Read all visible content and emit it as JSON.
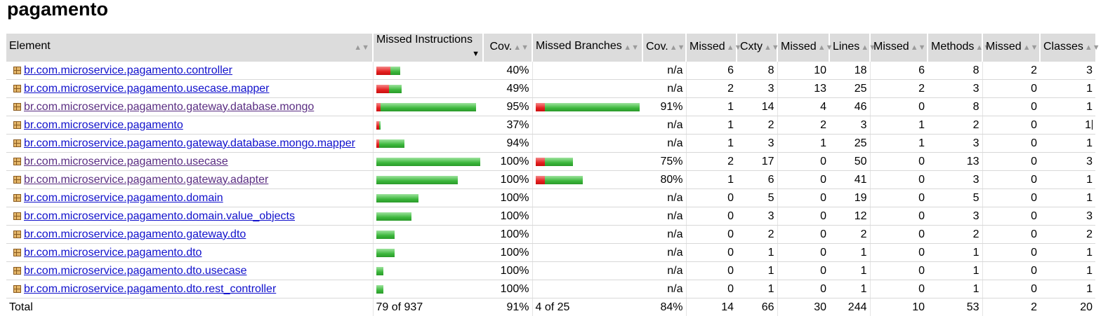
{
  "page_title": "pagamento",
  "headers": {
    "element": "Element",
    "missed_instructions": "Missed Instructions",
    "cov1": "Cov.",
    "missed_branches": "Missed Branches",
    "cov2": "Cov.",
    "missed_cxty": "Missed",
    "cxty": "Cxty",
    "missed_lines": "Missed",
    "lines": "Lines",
    "missed_methods": "Missed",
    "methods": "Methods",
    "missed_classes": "Missed",
    "classes": "Classes"
  },
  "icons": {
    "package": "package-icon",
    "sort": "sort-arrows-icon",
    "sort_desc": "sort-descending-icon"
  },
  "colors": {
    "link": "#1111cc",
    "visited_link": "#5a2d82",
    "bar_red": "#e52020",
    "bar_green": "#3cb73c",
    "header_bg": "#dcdcdc"
  },
  "rows": [
    {
      "name": "br.com.microservice.pagamento.controller",
      "visited": false,
      "instr": {
        "missed": 10,
        "covered": 7
      },
      "cov1": "40%",
      "branch": null,
      "cov2": "n/a",
      "m_cxty": "6",
      "cxty": "8",
      "m_lines": "10",
      "lines": "18",
      "m_methods": "6",
      "methods": "8",
      "m_classes": "2",
      "classes": "3"
    },
    {
      "name": "br.com.microservice.pagamento.usecase.mapper",
      "visited": false,
      "instr": {
        "missed": 9,
        "covered": 9
      },
      "cov1": "49%",
      "branch": null,
      "cov2": "n/a",
      "m_cxty": "2",
      "cxty": "3",
      "m_lines": "13",
      "lines": "25",
      "m_methods": "2",
      "methods": "3",
      "m_classes": "0",
      "classes": "1"
    },
    {
      "name": "br.com.microservice.pagamento.gateway.database.mongo",
      "visited": true,
      "instr": {
        "missed": 3,
        "covered": 68
      },
      "cov1": "95%",
      "branch": {
        "missed": 1,
        "covered": 10
      },
      "cov2": "91%",
      "m_cxty": "1",
      "cxty": "14",
      "m_lines": "4",
      "lines": "46",
      "m_methods": "0",
      "methods": "8",
      "m_classes": "0",
      "classes": "1"
    },
    {
      "name": "br.com.microservice.pagamento",
      "visited": false,
      "instr": {
        "missed": 2,
        "covered": 1
      },
      "cov1": "37%",
      "branch": null,
      "cov2": "n/a",
      "m_cxty": "1",
      "cxty": "2",
      "m_lines": "2",
      "lines": "3",
      "m_methods": "1",
      "methods": "2",
      "m_classes": "0",
      "classes": "1",
      "cursor": true
    },
    {
      "name": "br.com.microservice.pagamento.gateway.database.mongo.mapper",
      "visited": false,
      "instr": {
        "missed": 1,
        "covered": 18
      },
      "cov1": "94%",
      "branch": null,
      "cov2": "n/a",
      "m_cxty": "1",
      "cxty": "3",
      "m_lines": "1",
      "lines": "25",
      "m_methods": "1",
      "methods": "3",
      "m_classes": "0",
      "classes": "1"
    },
    {
      "name": "br.com.microservice.pagamento.usecase",
      "visited": true,
      "instr": {
        "missed": 0,
        "covered": 74
      },
      "cov1": "100%",
      "branch": {
        "missed": 1,
        "covered": 3
      },
      "cov2": "75%",
      "m_cxty": "2",
      "cxty": "17",
      "m_lines": "0",
      "lines": "50",
      "m_methods": "0",
      "methods": "13",
      "m_classes": "0",
      "classes": "3"
    },
    {
      "name": "br.com.microservice.pagamento.gateway.adapter",
      "visited": true,
      "instr": {
        "missed": 0,
        "covered": 58
      },
      "cov1": "100%",
      "branch": {
        "missed": 1,
        "covered": 4
      },
      "cov2": "80%",
      "m_cxty": "1",
      "cxty": "6",
      "m_lines": "0",
      "lines": "41",
      "m_methods": "0",
      "methods": "3",
      "m_classes": "0",
      "classes": "1"
    },
    {
      "name": "br.com.microservice.pagamento.domain",
      "visited": false,
      "instr": {
        "missed": 0,
        "covered": 30
      },
      "cov1": "100%",
      "branch": null,
      "cov2": "n/a",
      "m_cxty": "0",
      "cxty": "5",
      "m_lines": "0",
      "lines": "19",
      "m_methods": "0",
      "methods": "5",
      "m_classes": "0",
      "classes": "1"
    },
    {
      "name": "br.com.microservice.pagamento.domain.value_objects",
      "visited": false,
      "instr": {
        "missed": 0,
        "covered": 25
      },
      "cov1": "100%",
      "branch": null,
      "cov2": "n/a",
      "m_cxty": "0",
      "cxty": "3",
      "m_lines": "0",
      "lines": "12",
      "m_methods": "0",
      "methods": "3",
      "m_classes": "0",
      "classes": "3"
    },
    {
      "name": "br.com.microservice.pagamento.gateway.dto",
      "visited": false,
      "instr": {
        "missed": 0,
        "covered": 13
      },
      "cov1": "100%",
      "branch": null,
      "cov2": "n/a",
      "m_cxty": "0",
      "cxty": "2",
      "m_lines": "0",
      "lines": "2",
      "m_methods": "0",
      "methods": "2",
      "m_classes": "0",
      "classes": "2"
    },
    {
      "name": "br.com.microservice.pagamento.dto",
      "visited": false,
      "instr": {
        "missed": 0,
        "covered": 13
      },
      "cov1": "100%",
      "branch": null,
      "cov2": "n/a",
      "m_cxty": "0",
      "cxty": "1",
      "m_lines": "0",
      "lines": "1",
      "m_methods": "0",
      "methods": "1",
      "m_classes": "0",
      "classes": "1"
    },
    {
      "name": "br.com.microservice.pagamento.dto.usecase",
      "visited": false,
      "instr": {
        "missed": 0,
        "covered": 5
      },
      "cov1": "100%",
      "branch": null,
      "cov2": "n/a",
      "m_cxty": "0",
      "cxty": "1",
      "m_lines": "0",
      "lines": "1",
      "m_methods": "0",
      "methods": "1",
      "m_classes": "0",
      "classes": "1"
    },
    {
      "name": "br.com.microservice.pagamento.dto.rest_controller",
      "visited": false,
      "instr": {
        "missed": 0,
        "covered": 5
      },
      "cov1": "100%",
      "branch": null,
      "cov2": "n/a",
      "m_cxty": "0",
      "cxty": "1",
      "m_lines": "0",
      "lines": "1",
      "m_methods": "0",
      "methods": "1",
      "m_classes": "0",
      "classes": "1"
    }
  ],
  "total": {
    "label": "Total",
    "instr": "79 of 937",
    "cov1": "91%",
    "branch": "4 of 25",
    "cov2": "84%",
    "m_cxty": "14",
    "cxty": "66",
    "m_lines": "30",
    "lines": "244",
    "m_methods": "10",
    "methods": "53",
    "m_classes": "2",
    "classes": "20"
  }
}
